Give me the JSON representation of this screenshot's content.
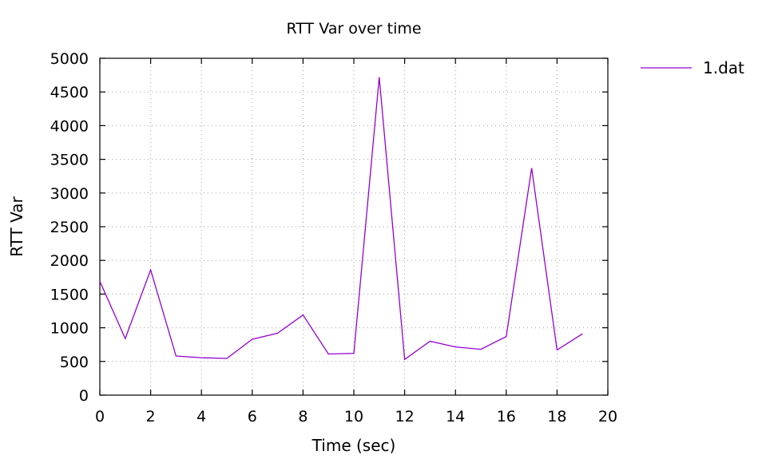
{
  "chart_data": {
    "type": "line",
    "title": "RTT Var over time",
    "xlabel": "Time (sec)",
    "ylabel": "RTT Var",
    "xlim": [
      0,
      20
    ],
    "ylim": [
      0,
      5000
    ],
    "xticks": [
      0,
      2,
      4,
      6,
      8,
      10,
      12,
      14,
      16,
      18,
      20
    ],
    "yticks": [
      0,
      500,
      1000,
      1500,
      2000,
      2500,
      3000,
      3500,
      4000,
      4500,
      5000
    ],
    "grid": true,
    "legend_position": "top-right outside",
    "series": [
      {
        "name": "1.dat",
        "color": "#9400d3",
        "x": [
          0,
          1,
          2,
          3,
          4,
          5,
          6,
          7,
          8,
          9,
          10,
          11,
          12,
          13,
          14,
          15,
          16,
          17,
          18,
          19
        ],
        "y": [
          1690,
          840,
          1860,
          580,
          555,
          545,
          830,
          920,
          1190,
          610,
          620,
          4720,
          530,
          800,
          715,
          680,
          870,
          3370,
          670,
          910
        ]
      }
    ]
  }
}
